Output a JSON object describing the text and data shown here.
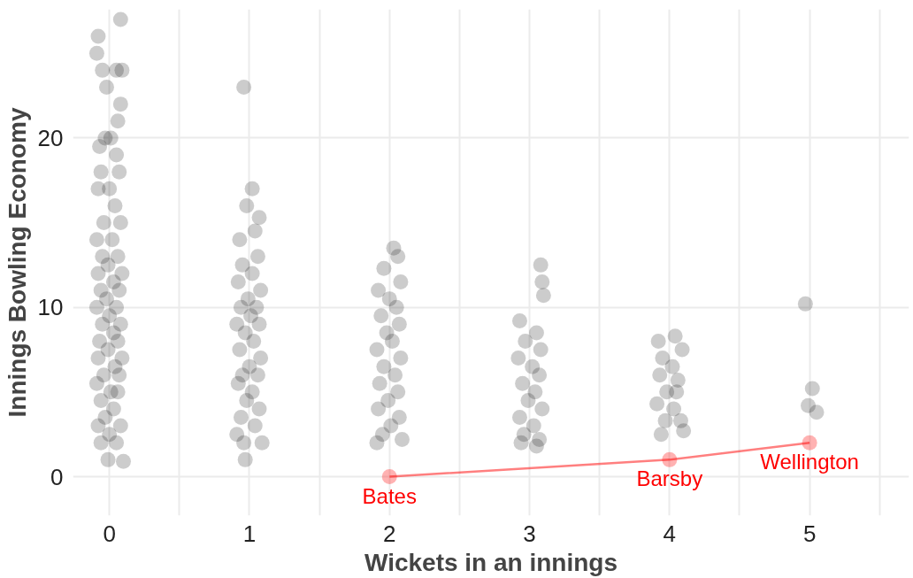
{
  "chart_data": {
    "type": "scatter",
    "xlabel": "Wickets in an innings",
    "ylabel": "Innings Bowling Economy",
    "xlim": [
      -0.26,
      5.71
    ],
    "ylim": [
      -2.3,
      27.6
    ],
    "xticks": [
      0,
      {
        "value": 0.5,
        "label": null
      },
      1,
      {
        "value": 1.5,
        "label": null
      },
      2,
      {
        "value": 2.5,
        "label": null
      },
      3,
      {
        "value": 3.5,
        "label": null
      },
      4,
      {
        "value": 4.5,
        "label": null
      },
      5,
      {
        "value": 5.5,
        "label": null
      }
    ],
    "yticks": [
      0,
      10,
      20
    ],
    "grid": true,
    "series": [
      {
        "color": "#000000",
        "marker": "circle",
        "x": [
          -0.09,
          -0.08,
          0.08,
          -0.05,
          0.05,
          0.09,
          -0.02,
          0.08,
          0.06,
          -0.03,
          0.01,
          -0.07,
          0.05,
          -0.06,
          0.07,
          0.0,
          -0.08,
          0.04,
          -0.04,
          0.08,
          -0.09,
          0.02,
          -0.05,
          0.06,
          -0.01,
          0.09,
          -0.08,
          0.03,
          -0.06,
          0.07,
          -0.02,
          0.05,
          -0.09,
          0.0,
          -0.05,
          0.08,
          0.03,
          -0.07,
          0.06,
          -0.01,
          0.09,
          -0.08,
          0.04,
          -0.04,
          0.07,
          -0.09,
          0.01,
          0.06,
          -0.06,
          0.03,
          -0.03,
          0.08,
          -0.08,
          0.0,
          -0.06,
          0.05,
          -0.01,
          0.1,
          0.96,
          1.02,
          0.98,
          1.07,
          1.04,
          0.93,
          1.06,
          0.95,
          1.02,
          0.92,
          1.08,
          0.99,
          0.94,
          1.05,
          1.01,
          0.91,
          1.07,
          0.97,
          1.03,
          0.93,
          1.08,
          1.0,
          0.95,
          1.06,
          0.92,
          1.02,
          0.98,
          1.07,
          0.94,
          1.04,
          0.91,
          1.09,
          0.96,
          0.97,
          2.03,
          2.06,
          1.96,
          2.08,
          1.92,
          2.0,
          2.05,
          1.94,
          2.07,
          1.98,
          2.02,
          1.91,
          2.08,
          1.96,
          2.04,
          1.93,
          2.06,
          1.99,
          1.92,
          2.07,
          2.01,
          1.95,
          2.09,
          1.91,
          3.08,
          3.09,
          3.1,
          2.93,
          3.05,
          2.97,
          3.08,
          2.92,
          3.02,
          3.07,
          2.95,
          3.04,
          2.99,
          3.09,
          2.93,
          3.03,
          2.96,
          3.07,
          2.94,
          3.05,
          3.92,
          4.04,
          4.09,
          3.95,
          4.02,
          3.93,
          4.06,
          3.98,
          4.05,
          3.91,
          4.03,
          4.08,
          3.97,
          3.94,
          4.1,
          4.97,
          5.02,
          4.99,
          5.05
        ],
        "values": [
          25,
          26,
          27,
          24,
          24,
          24,
          23,
          22,
          21,
          20,
          20,
          19.5,
          19,
          18,
          18,
          17,
          17,
          16,
          15,
          15,
          14,
          14,
          13,
          13,
          12.5,
          12,
          12,
          11.5,
          11,
          11,
          10.5,
          10,
          10,
          9.5,
          9,
          9,
          8.5,
          8,
          8,
          7.5,
          7,
          7,
          6.5,
          6,
          6,
          5.5,
          5,
          5,
          4.5,
          4,
          3.5,
          3,
          3,
          2.5,
          2,
          2,
          1,
          0.9,
          23,
          17,
          16,
          15.3,
          14.5,
          14,
          13,
          12.5,
          12,
          11.5,
          11,
          10.5,
          10,
          10,
          9.5,
          9,
          9,
          8.5,
          8,
          7.5,
          7,
          6.5,
          6,
          6,
          5.5,
          5,
          4.5,
          4,
          3.5,
          3,
          2.5,
          2,
          2,
          1,
          13.5,
          13,
          12.3,
          11.5,
          11,
          10.5,
          10,
          9.5,
          9,
          8.5,
          8,
          7.5,
          7,
          6.5,
          6,
          5.5,
          5,
          4.5,
          4,
          3.5,
          3,
          2.5,
          2.2,
          2,
          12.5,
          11.5,
          10.7,
          9.2,
          8.5,
          8,
          7.5,
          7,
          6.5,
          6,
          5.5,
          5,
          4.5,
          4,
          3.5,
          3,
          2.5,
          2.2,
          2,
          1.8,
          8,
          8.3,
          7.5,
          7,
          6.5,
          6,
          5.7,
          5,
          5,
          4.3,
          4,
          3.3,
          3.3,
          2.5,
          2.7,
          10.2,
          5.2,
          4.2,
          3.8
        ]
      },
      {
        "type": "line",
        "color": "#ff0000",
        "marker": "circle",
        "x": [
          2,
          4,
          5
        ],
        "values": [
          0,
          1,
          2
        ]
      }
    ],
    "annotations": [
      {
        "text": "Bates",
        "x": 2,
        "y": 0
      },
      {
        "text": "Barsby",
        "x": 4,
        "y": 1
      },
      {
        "text": "Wellington",
        "x": 5,
        "y": 2
      }
    ]
  }
}
